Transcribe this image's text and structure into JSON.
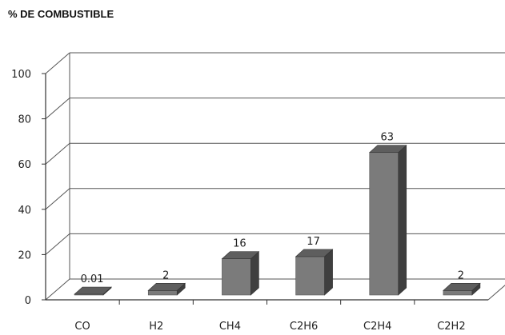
{
  "chart_data": {
    "type": "bar",
    "title": "% DE COMBUSTIBLE",
    "categories": [
      "CO",
      "H2",
      "CH4",
      "C2H6",
      "C2H4",
      "C2H2"
    ],
    "values": [
      0.01,
      2,
      16,
      17,
      63,
      2
    ],
    "data_labels": [
      "0.01",
      "2",
      "16",
      "17",
      "63",
      "2"
    ],
    "ylim": [
      0,
      100
    ],
    "yticks": [
      0,
      20,
      40,
      60,
      80,
      100
    ],
    "xlabel": "",
    "ylabel": "",
    "grid": true,
    "style": "3d-column",
    "colors": {
      "bar_front": "#7b7b7b",
      "bar_side": "#3f3f3f",
      "bar_top": "#5e5e5e",
      "grid": "#555555"
    }
  }
}
